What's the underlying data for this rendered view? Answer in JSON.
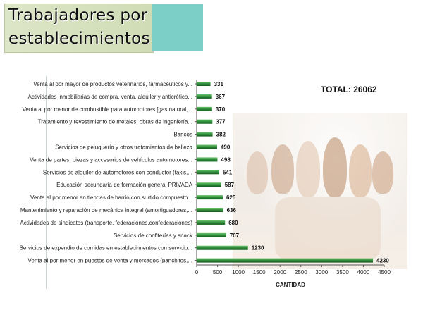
{
  "page": {
    "title_line1": "Trabajadores por",
    "title_line2": "establecimientos"
  },
  "chart_data": {
    "type": "bar",
    "orientation": "horizontal",
    "categories": [
      "Venta al por mayor de productos veterinarios, farmacéuticos y...",
      "Actividades inmobiliarias de compra, venta, alquiler y anticrético...",
      "Venta al por menor de combustible para automotores [gas natural,...",
      "Tratamiento y revestimiento de metales; obras de ingeniería...",
      "Bancos",
      "Servicios de peluquería y otros tratamientos de belleza",
      "Venta de partes, piezas y accesorios de vehículos automotores...",
      "Servicios de alquiler de automotores con conductor (taxis,...",
      "Educación secundaria de formación general PRIVADA",
      "Venta al por menor en tiendas de barrio  con surtido compuesto...",
      "Mantenimiento y reparación de mecánica integral (amortiguadores,...",
      "Actividades de sindicatos (transporte, federaciones,confederaciones)",
      "Servicios de confiterías y snack",
      "Servicios de expendio de comidas en establecimientos con servicio...",
      "Venta al por menor en puestos de venta y mercados (panchitos,..."
    ],
    "values": [
      331,
      367,
      370,
      377,
      382,
      490,
      498,
      541,
      587,
      625,
      636,
      680,
      707,
      1230,
      4230
    ],
    "xlabel": "CANTIDAD",
    "ylabel": "",
    "xlim": [
      0,
      4500
    ],
    "xticks": [
      "0",
      "500",
      "1000",
      "1500",
      "2000",
      "2500",
      "3000",
      "3500",
      "4000",
      "4500"
    ],
    "annotation": "TOTAL: 26062",
    "bar_color": "#2e8b3a",
    "grid": false
  }
}
